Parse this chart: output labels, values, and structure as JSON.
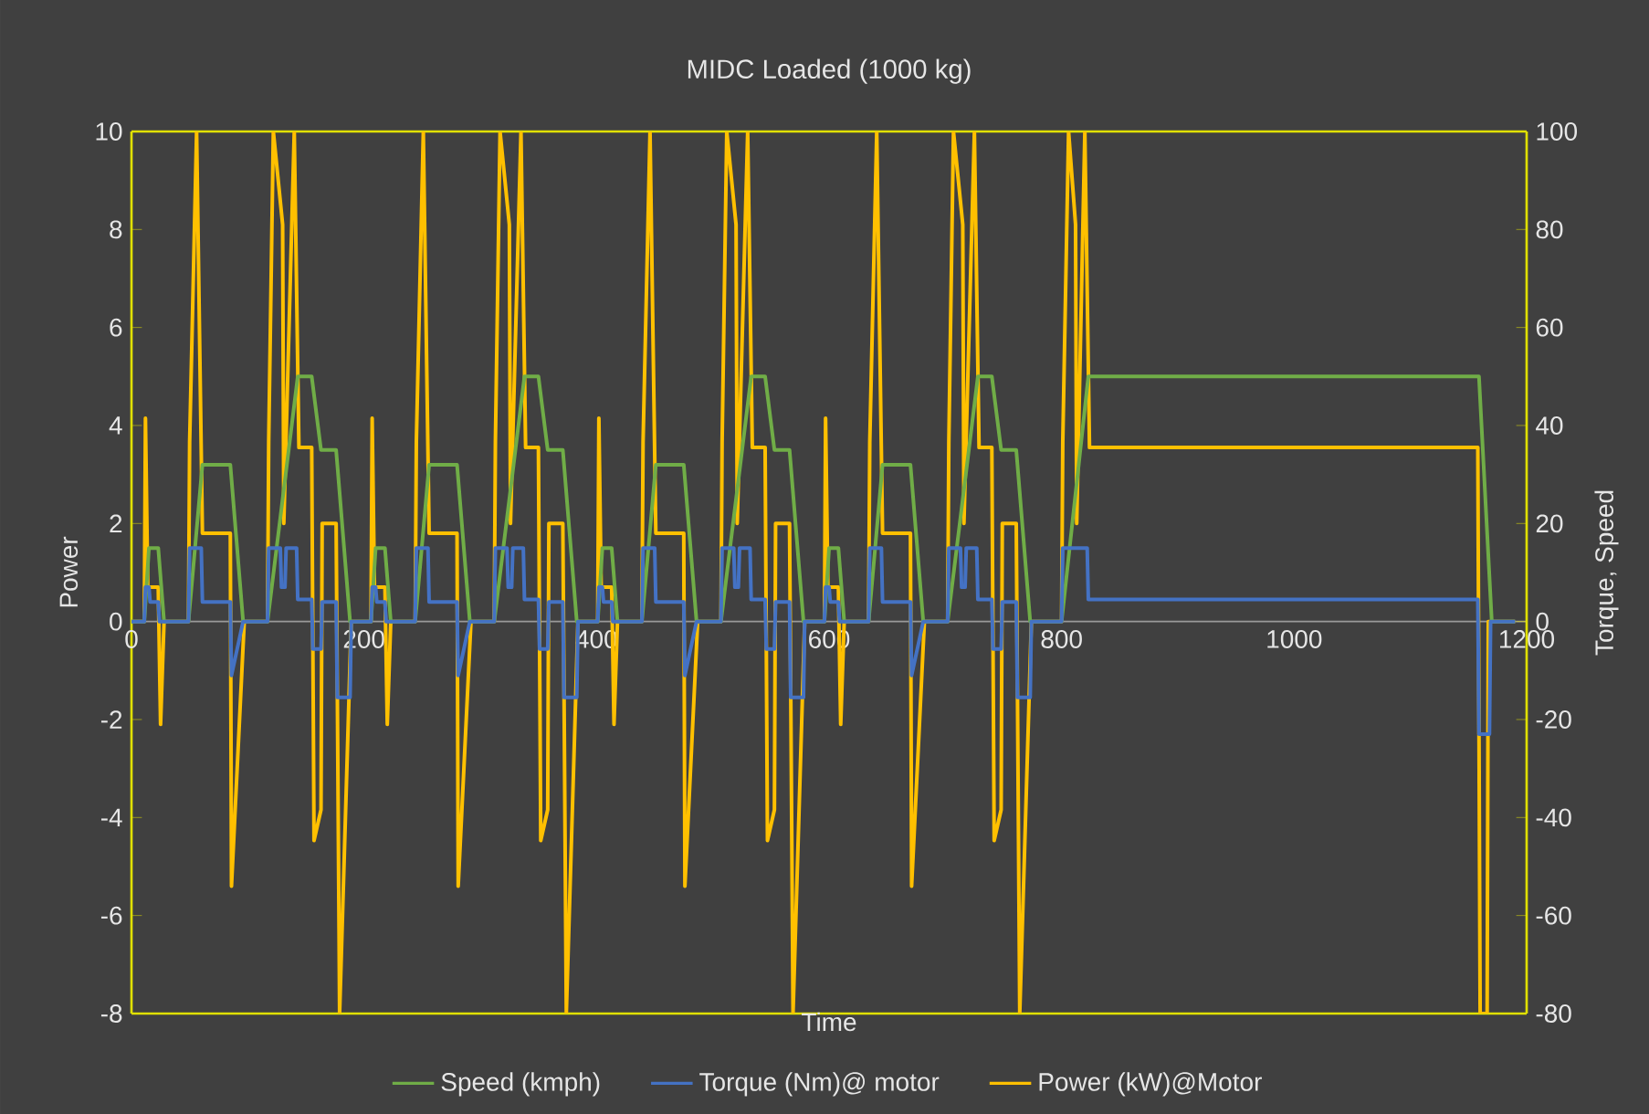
{
  "chart_data": {
    "type": "line",
    "title": "MIDC Loaded (1000 kg)",
    "xlabel": "Time",
    "ylabel": "Power",
    "y2label": "Torque, Speed",
    "xlim": [
      0,
      1200
    ],
    "xticks": [
      0,
      200,
      400,
      600,
      800,
      1000,
      1200
    ],
    "ylim": [
      -8,
      10
    ],
    "yticks": [
      -8,
      -6,
      -4,
      -2,
      0,
      2,
      4,
      6,
      8,
      10
    ],
    "y2lim": [
      -80,
      100
    ],
    "y2ticks": [
      -80,
      -60,
      -40,
      -20,
      0,
      20,
      40,
      60,
      80,
      100
    ],
    "grid": false,
    "legend": "bottom",
    "series": [
      {
        "name": "Speed (kmph)",
        "color": "#70ad47",
        "axis": "y2",
        "x": [
          0,
          11,
          15,
          23,
          28,
          49,
          61,
          85,
          96,
          117,
          143,
          155,
          163,
          176,
          188,
          195,
          206,
          210,
          218,
          223,
          244,
          256,
          280,
          291,
          312,
          338,
          350,
          358,
          371,
          383,
          390,
          401,
          405,
          413,
          418,
          439,
          451,
          475,
          486,
          507,
          533,
          545,
          553,
          566,
          578,
          585,
          596,
          600,
          608,
          613,
          634,
          646,
          670,
          681,
          702,
          728,
          740,
          748,
          761,
          773,
          800,
          823,
          1159,
          1170,
          1190
        ],
        "values": [
          0,
          0,
          15,
          15,
          0,
          0,
          32,
          32,
          0,
          0,
          50,
          50,
          35,
          35,
          0,
          0,
          0,
          15,
          15,
          0,
          0,
          32,
          32,
          0,
          0,
          50,
          50,
          35,
          35,
          0,
          0,
          0,
          15,
          15,
          0,
          0,
          32,
          32,
          0,
          0,
          50,
          50,
          35,
          35,
          0,
          0,
          0,
          15,
          15,
          0,
          0,
          32,
          32,
          0,
          0,
          50,
          50,
          35,
          35,
          0,
          0,
          50,
          50,
          0,
          0
        ]
      },
      {
        "name": "Torque (Nm)@ motor",
        "color": "#4472c4",
        "axis": "y2",
        "x": [
          0,
          11,
          12,
          15,
          16,
          23,
          24,
          49,
          50,
          60,
          61,
          85,
          86,
          96,
          117,
          118,
          128,
          129,
          132,
          133,
          142,
          143,
          155,
          156,
          163,
          164,
          176,
          177,
          188,
          189,
          195,
          206,
          207,
          210,
          211,
          218,
          219,
          244,
          245,
          255,
          256,
          280,
          281,
          291,
          312,
          313,
          323,
          324,
          327,
          328,
          337,
          338,
          350,
          351,
          358,
          359,
          371,
          372,
          383,
          384,
          390,
          401,
          402,
          405,
          406,
          413,
          414,
          439,
          440,
          450,
          451,
          475,
          476,
          486,
          507,
          508,
          518,
          519,
          522,
          523,
          532,
          533,
          545,
          546,
          553,
          554,
          566,
          567,
          578,
          579,
          585,
          596,
          597,
          600,
          601,
          608,
          609,
          634,
          635,
          645,
          646,
          670,
          671,
          681,
          702,
          703,
          713,
          714,
          717,
          718,
          727,
          728,
          740,
          741,
          748,
          749,
          761,
          762,
          773,
          774,
          800,
          801,
          822,
          823,
          1158,
          1159,
          1168,
          1169,
          1190
        ],
        "values": [
          0,
          0,
          7,
          7,
          4,
          4,
          0,
          0,
          15,
          15,
          4,
          4,
          -11,
          0,
          0,
          15,
          15,
          7,
          7,
          15,
          15,
          4.5,
          4.5,
          -5.6,
          -5.6,
          4,
          4,
          -15.5,
          -15.5,
          0,
          0,
          0,
          7,
          7,
          4,
          4,
          0,
          0,
          15,
          15,
          4,
          4,
          -11,
          0,
          0,
          15,
          15,
          7,
          7,
          15,
          15,
          4.5,
          4.5,
          -5.6,
          -5.6,
          4,
          4,
          -15.5,
          -15.5,
          0,
          0,
          0,
          7,
          7,
          4,
          4,
          0,
          0,
          15,
          15,
          4,
          4,
          -11,
          0,
          0,
          15,
          15,
          7,
          7,
          15,
          15,
          4.5,
          4.5,
          -5.6,
          -5.6,
          4,
          4,
          -15.5,
          -15.5,
          0,
          0,
          0,
          7,
          7,
          4,
          4,
          0,
          0,
          15,
          15,
          4,
          4,
          -11,
          0,
          0,
          15,
          15,
          7,
          7,
          15,
          15,
          4.5,
          4.5,
          -5.6,
          -5.6,
          4,
          4,
          -15.5,
          -15.5,
          0,
          0,
          15,
          15,
          4.5,
          4.5,
          -23,
          -23,
          0,
          0
        ]
      },
      {
        "name": "Power (kW)@Motor",
        "color": "#ffc000",
        "x": [
          0,
          11,
          12,
          14,
          23,
          25,
          28,
          49,
          50,
          56,
          61,
          85,
          86,
          97,
          117,
          118,
          122,
          130,
          131,
          140,
          144,
          155,
          157,
          163,
          164,
          176,
          179,
          189,
          195,
          206,
          207,
          209,
          218,
          220,
          223,
          244,
          245,
          251,
          256,
          280,
          281,
          292,
          312,
          313,
          317,
          325,
          326,
          335,
          339,
          350,
          352,
          358,
          359,
          371,
          374,
          384,
          390,
          401,
          402,
          404,
          413,
          415,
          418,
          439,
          440,
          446,
          451,
          475,
          476,
          487,
          507,
          508,
          512,
          520,
          521,
          530,
          534,
          545,
          547,
          553,
          554,
          566,
          569,
          579,
          585,
          596,
          597,
          599,
          608,
          610,
          613,
          634,
          635,
          641,
          646,
          670,
          671,
          682,
          702,
          703,
          707,
          715,
          716,
          725,
          729,
          740,
          742,
          748,
          749,
          761,
          764,
          774,
          800,
          801,
          806,
          812,
          813,
          820,
          824,
          1158,
          1160,
          1166,
          1167,
          1190
        ],
        "values": [
          0,
          0,
          4.15,
          0.7,
          0.7,
          -2.1,
          0,
          0,
          3.66,
          10,
          1.8,
          1.8,
          -5.4,
          0,
          0,
          3.66,
          10,
          8.1,
          2,
          10,
          3.55,
          3.55,
          -4.47,
          -3.84,
          2,
          2,
          -8,
          0,
          0,
          0,
          4.15,
          0.7,
          0.7,
          -2.1,
          0,
          0,
          3.66,
          10,
          1.8,
          1.8,
          -5.4,
          0,
          0,
          3.66,
          10,
          8.1,
          2,
          10,
          3.55,
          3.55,
          -4.47,
          -3.84,
          2,
          2,
          -8,
          0,
          0,
          0,
          4.15,
          0.7,
          0.7,
          -2.1,
          0,
          0,
          3.66,
          10,
          1.8,
          1.8,
          -5.4,
          0,
          0,
          3.66,
          10,
          8.1,
          2,
          10,
          3.55,
          3.55,
          -4.47,
          -3.84,
          2,
          2,
          -8,
          0,
          0,
          0,
          4.15,
          0.7,
          0.7,
          -2.1,
          0,
          0,
          3.66,
          10,
          1.8,
          1.8,
          -5.4,
          0,
          0,
          3.66,
          10,
          8.1,
          2,
          10,
          3.55,
          3.55,
          -4.47,
          -3.84,
          2,
          2,
          -8,
          0,
          0,
          3.66,
          10,
          8.1,
          2,
          10,
          3.55,
          3.55,
          -8,
          -8,
          0,
          0
        ]
      }
    ]
  }
}
